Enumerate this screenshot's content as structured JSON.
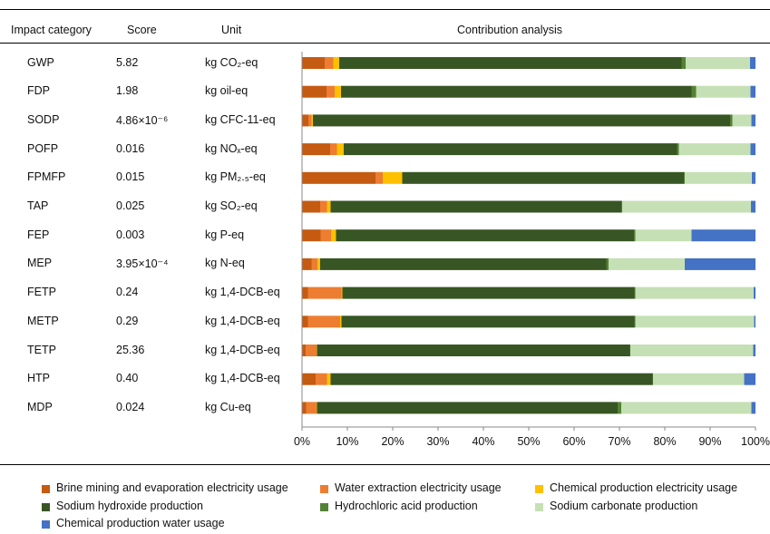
{
  "headers": {
    "category": "Impact category",
    "score": "Score",
    "unit": "Unit",
    "analysis": "Contribution analysis"
  },
  "rows": [
    {
      "category": "GWP",
      "score": "5.82",
      "unit": "kg CO₂-eq"
    },
    {
      "category": "FDP",
      "score": "1.98",
      "unit": "kg oil-eq"
    },
    {
      "category": "SODP",
      "score": "4.86×10⁻⁶",
      "unit": "kg CFC-11-eq"
    },
    {
      "category": "POFP",
      "score": "0.016",
      "unit": "kg NOₓ-eq"
    },
    {
      "category": "FPMFP",
      "score": "0.015",
      "unit": "kg PM₂.₅-eq"
    },
    {
      "category": "TAP",
      "score": "0.025",
      "unit": "kg SO₂-eq"
    },
    {
      "category": "FEP",
      "score": "0.003",
      "unit": "kg P-eq"
    },
    {
      "category": "MEP",
      "score": "3.95×10⁻⁴",
      "unit": "kg N-eq"
    },
    {
      "category": "FETP",
      "score": "0.24",
      "unit": "kg 1,4-DCB-eq"
    },
    {
      "category": "METP",
      "score": "0.29",
      "unit": "kg 1,4-DCB-eq"
    },
    {
      "category": "TETP",
      "score": "25.36",
      "unit": "kg 1,4-DCB-eq"
    },
    {
      "category": "HTP",
      "score": "0.40",
      "unit": "kg 1,4-DCB-eq"
    },
    {
      "category": "MDP",
      "score": "0.024",
      "unit": "kg Cu-eq"
    }
  ],
  "chart_data": {
    "type": "bar",
    "orientation": "horizontal",
    "stacked": true,
    "title": "Contribution analysis",
    "categories": [
      "GWP",
      "FDP",
      "SODP",
      "POFP",
      "FPMFP",
      "TAP",
      "FEP",
      "MEP",
      "FETP",
      "METP",
      "TETP",
      "HTP",
      "MDP"
    ],
    "xlim": [
      0,
      100
    ],
    "x_tick_labels": [
      "0%",
      "10%",
      "20%",
      "30%",
      "40%",
      "50%",
      "60%",
      "70%",
      "80%",
      "90%",
      "100%"
    ],
    "legend_position": "bottom",
    "series": [
      {
        "name": "Brine mining and evaporation electricity usage",
        "color": "#C55A11",
        "values": [
          5.0,
          5.4,
          1.4,
          6.2,
          16.2,
          4.0,
          4.1,
          2.1,
          1.3,
          1.3,
          0.8,
          3.0,
          0.9
        ]
      },
      {
        "name": "Water extraction electricity usage",
        "color": "#ED7D31",
        "values": [
          1.9,
          1.8,
          0.7,
          1.5,
          1.6,
          1.5,
          2.3,
          1.3,
          7.4,
          7.1,
          2.4,
          2.5,
          2.3
        ]
      },
      {
        "name": "Chemical production electricity usage",
        "color": "#FFC000",
        "values": [
          1.3,
          1.4,
          0.3,
          1.5,
          4.3,
          0.8,
          1.1,
          0.6,
          0.2,
          0.3,
          0.1,
          0.8,
          0.1
        ]
      },
      {
        "name": "Sodium hydroxide production",
        "color": "#375623",
        "values": [
          75.5,
          77.3,
          92.0,
          73.5,
          62.1,
          64.1,
          65.7,
          63.1,
          64.4,
          64.6,
          69.0,
          71.0,
          66.3
        ]
      },
      {
        "name": "Hydrochloric acid production",
        "color": "#548235",
        "values": [
          0.9,
          1.0,
          0.5,
          0.4,
          0.2,
          0.2,
          0.3,
          0.5,
          0.2,
          0.2,
          0.1,
          0.1,
          0.8
        ]
      },
      {
        "name": "Sodium carbonate production",
        "color": "#C5E0B4",
        "values": [
          14.2,
          12.0,
          4.2,
          15.8,
          14.8,
          28.4,
          12.4,
          16.8,
          26.1,
          26.2,
          27.1,
          20.1,
          28.7
        ]
      },
      {
        "name": "Chemical production water usage",
        "color": "#4472C4",
        "values": [
          1.2,
          1.1,
          0.9,
          1.1,
          0.8,
          1.0,
          14.1,
          15.6,
          0.4,
          0.3,
          0.5,
          2.5,
          0.9
        ]
      }
    ]
  }
}
